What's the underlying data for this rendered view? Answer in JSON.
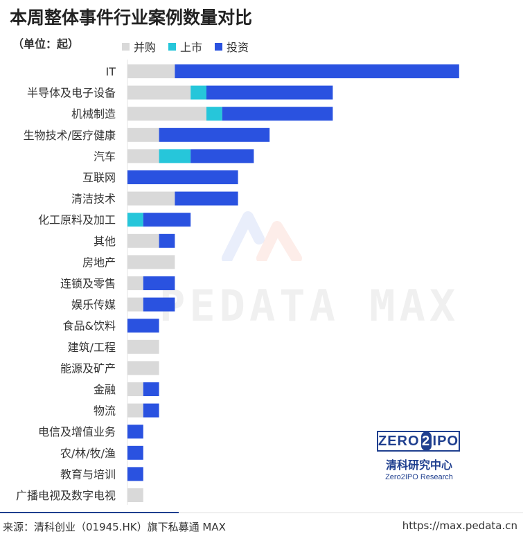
{
  "title": "本周整体事件行业案例数量对比",
  "unit": "（单位：起）",
  "colors": {
    "ma": "#d9d9d9",
    "ipo": "#26c6da",
    "inv": "#2a52e0",
    "brand": "#1f3f8f"
  },
  "chart_data": {
    "type": "bar",
    "orientation": "horizontal",
    "stacked": true,
    "categories": [
      "IT",
      "半导体及电子设备",
      "机械制造",
      "生物技术/医疗健康",
      "汽车",
      "互联网",
      "清洁技术",
      "化工原料及加工",
      "其他",
      "房地产",
      "连锁及零售",
      "娱乐传媒",
      "食品&饮料",
      "建筑/工程",
      "能源及矿产",
      "金融",
      "物流",
      "电信及增值业务",
      "农/林/牧/渔",
      "教育与培训",
      "广播电视及数字电视"
    ],
    "series": [
      {
        "name": "并购",
        "color": "#d9d9d9",
        "values": [
          3,
          4,
          5,
          2,
          2,
          0,
          3,
          0,
          2,
          3,
          1,
          1,
          0,
          2,
          2,
          1,
          1,
          0,
          0,
          0,
          1
        ]
      },
      {
        "name": "上市",
        "color": "#26c6da",
        "values": [
          0,
          1,
          1,
          0,
          2,
          0,
          0,
          1,
          0,
          0,
          0,
          0,
          0,
          0,
          0,
          0,
          0,
          0,
          0,
          0,
          0
        ]
      },
      {
        "name": "投资",
        "color": "#2a52e0",
        "values": [
          18,
          8,
          7,
          7,
          4,
          7,
          4,
          3,
          1,
          0,
          2,
          2,
          2,
          0,
          0,
          1,
          1,
          1,
          1,
          1,
          0
        ]
      }
    ],
    "xlim": [
      0,
      21
    ],
    "title": "本周整体事件行业案例数量对比",
    "legend": "top-left"
  },
  "watermark": "PEDATA MAX",
  "brand": {
    "top_left": "ZERO",
    "top_mid": "2",
    "top_right": "IPO",
    "cn": "清科研究中心",
    "en": "Zero2IPO Research"
  },
  "footer": {
    "source": "来源：清科创业（01945.HK）旗下私募通 MAX",
    "url": "https://max.pedata.cn"
  }
}
